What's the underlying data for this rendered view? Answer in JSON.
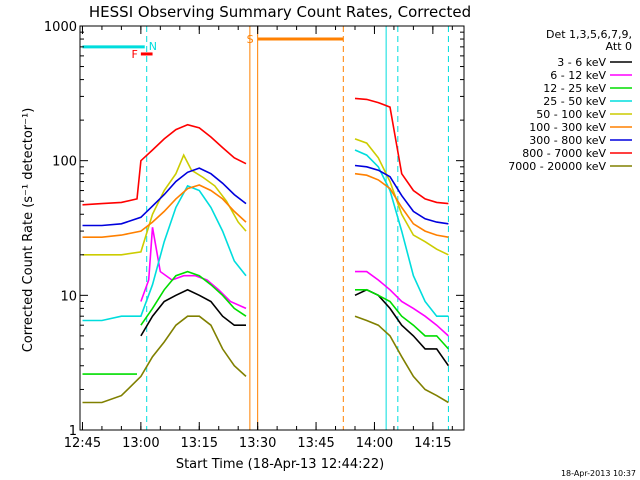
{
  "chart_data": {
    "type": "line",
    "title": "HESSI Observing Summary Count Rates, Corrected",
    "xlabel": "Start Time (18-Apr-13 12:44:22)",
    "ylabel": "Corrected Count Rate (s⁻¹ detector⁻¹)",
    "yscale": "log",
    "ylim": [
      1,
      1000
    ],
    "xlim": [
      "12:44:22",
      "14:23:00"
    ],
    "x_ticks": [
      "12:45",
      "13:00",
      "13:15",
      "13:30",
      "13:45",
      "14:00",
      "14:15"
    ],
    "y_ticks": [
      "1",
      "10",
      "100",
      "1000"
    ],
    "legend_title": [
      "Det 1,3,5,6,7,9,",
      "Att 0"
    ],
    "legend_position": "right",
    "timestamp": "18-Apr-2013 10:37",
    "annotations": [
      {
        "label": "F",
        "color": "#ff0000",
        "from": "13:00",
        "to": "13:03",
        "level": 620
      },
      {
        "label": "N",
        "color": "#00dddd",
        "from": "12:45",
        "to": "13:01",
        "level": 700
      },
      {
        "label": "S",
        "color": "#ff8000",
        "from": "13:30",
        "to": "13:52",
        "level": 800
      }
    ],
    "vlines": [
      {
        "time": "13:01:30",
        "color": "#00dddd",
        "style": "dashed"
      },
      {
        "time": "13:28",
        "color": "#ff8000",
        "style": "solid"
      },
      {
        "time": "13:30",
        "color": "#ff8000",
        "style": "solid"
      },
      {
        "time": "13:52",
        "color": "#ff8000",
        "style": "dashed"
      },
      {
        "time": "14:03",
        "color": "#00dddd",
        "style": "solid"
      },
      {
        "time": "14:06",
        "color": "#00dddd",
        "style": "dashed"
      },
      {
        "time": "14:19",
        "color": "#00dddd",
        "style": "dashed"
      }
    ],
    "series": [
      {
        "name": "3 - 6 keV",
        "color": "#000000",
        "x": [
          "13:00",
          "13:03",
          "13:06",
          "13:09",
          "13:12",
          "13:15",
          "13:18",
          "13:21",
          "13:24",
          "13:27",
          "13:55",
          "13:58",
          "14:01",
          "14:04",
          "14:07",
          "14:10",
          "14:13",
          "14:16",
          "14:19"
        ],
        "y": [
          5,
          7,
          9,
          10,
          11,
          10,
          9,
          7,
          6,
          6,
          10,
          11,
          10,
          8,
          6,
          5,
          4,
          4,
          3
        ]
      },
      {
        "name": "6 - 12 keV",
        "color": "#ff00ff",
        "x": [
          "13:00",
          "13:02",
          "13:03",
          "13:05",
          "13:08",
          "13:11",
          "13:14",
          "13:17",
          "13:20",
          "13:23",
          "13:27",
          "13:55",
          "13:58",
          "14:01",
          "14:04",
          "14:07",
          "14:10",
          "14:13",
          "14:16",
          "14:19"
        ],
        "y": [
          9,
          13,
          32,
          15,
          13,
          14,
          14,
          13,
          11,
          9,
          8,
          15,
          15,
          13,
          11,
          9,
          8,
          7,
          6,
          5
        ]
      },
      {
        "name": "12 - 25 keV",
        "color": "#00dd00",
        "x": [
          "13:00",
          "13:03",
          "13:06",
          "13:09",
          "13:12",
          "13:15",
          "13:18",
          "13:21",
          "13:24",
          "13:27",
          "13:55",
          "13:58",
          "14:01",
          "14:04",
          "14:07",
          "14:10",
          "14:13",
          "14:16",
          "14:19"
        ],
        "y": [
          6,
          8,
          11,
          14,
          15,
          14,
          12,
          10,
          8,
          7,
          11,
          11,
          10,
          9,
          7,
          6,
          5,
          5,
          4
        ]
      },
      {
        "name": "25 - 50 keV",
        "color": "#00dddd",
        "x": [
          "12:45",
          "12:50",
          "12:55",
          "13:00",
          "13:03",
          "13:06",
          "13:09",
          "13:12",
          "13:15",
          "13:18",
          "13:21",
          "13:24",
          "13:27",
          "13:55",
          "13:58",
          "14:01",
          "14:04",
          "14:07",
          "14:10",
          "14:13",
          "14:16",
          "14:19"
        ],
        "y": [
          6.5,
          6.5,
          7,
          7,
          12,
          25,
          45,
          65,
          60,
          45,
          30,
          18,
          14,
          120,
          110,
          90,
          60,
          30,
          14,
          9,
          7,
          7
        ]
      },
      {
        "name": "50 - 100 keV",
        "color": "#cccc00",
        "x": [
          "12:45",
          "12:50",
          "12:55",
          "13:00",
          "13:03",
          "13:06",
          "13:09",
          "13:11",
          "13:13",
          "13:16",
          "13:19",
          "13:22",
          "13:25",
          "13:27",
          "13:55",
          "13:58",
          "14:01",
          "14:04",
          "14:07",
          "14:10",
          "14:13",
          "14:16",
          "14:19"
        ],
        "y": [
          20,
          20,
          20,
          21,
          40,
          60,
          80,
          110,
          85,
          75,
          65,
          50,
          35,
          30,
          145,
          135,
          105,
          70,
          40,
          28,
          25,
          22,
          20
        ]
      },
      {
        "name": "100 - 300 keV",
        "color": "#ff8000",
        "x": [
          "12:45",
          "12:50",
          "12:55",
          "13:00",
          "13:03",
          "13:06",
          "13:09",
          "13:12",
          "13:15",
          "13:18",
          "13:21",
          "13:24",
          "13:27",
          "13:55",
          "13:58",
          "14:01",
          "14:04",
          "14:07",
          "14:10",
          "14:13",
          "14:16",
          "14:19"
        ],
        "y": [
          27,
          27,
          28,
          30,
          35,
          42,
          52,
          62,
          66,
          60,
          52,
          42,
          35,
          80,
          78,
          72,
          62,
          45,
          34,
          30,
          28,
          27
        ]
      },
      {
        "name": "300 - 800 keV",
        "color": "#0000dd",
        "x": [
          "12:45",
          "12:50",
          "12:55",
          "13:00",
          "13:03",
          "13:06",
          "13:09",
          "13:12",
          "13:15",
          "13:18",
          "13:21",
          "13:24",
          "13:27",
          "13:55",
          "13:58",
          "14:01",
          "14:04",
          "14:07",
          "14:10",
          "14:13",
          "14:16",
          "14:19"
        ],
        "y": [
          33,
          33,
          34,
          38,
          46,
          56,
          70,
          82,
          88,
          80,
          68,
          56,
          48,
          92,
          90,
          85,
          76,
          55,
          42,
          37,
          35,
          34
        ]
      },
      {
        "name": "800 - 7000 keV",
        "color": "#ff0000",
        "x": [
          "12:45",
          "12:50",
          "12:55",
          "12:59",
          "13:00",
          "13:03",
          "13:06",
          "13:09",
          "13:12",
          "13:15",
          "13:18",
          "13:21",
          "13:24",
          "13:27",
          "13:55",
          "13:58",
          "14:01",
          "14:04",
          "14:07",
          "14:10",
          "14:13",
          "14:16",
          "14:19"
        ],
        "y": [
          47,
          48,
          49,
          52,
          100,
          120,
          145,
          170,
          185,
          175,
          150,
          125,
          105,
          95,
          290,
          285,
          270,
          250,
          80,
          60,
          52,
          49,
          48
        ]
      },
      {
        "name": "7000 - 20000 keV",
        "color": "#808000",
        "x": [
          "12:45",
          "12:50",
          "12:55",
          "13:00",
          "13:03",
          "13:06",
          "13:09",
          "13:12",
          "13:15",
          "13:18",
          "13:21",
          "13:24",
          "13:27",
          "13:55",
          "13:58",
          "14:01",
          "14:04",
          "14:07",
          "14:10",
          "14:13",
          "14:16",
          "14:19"
        ],
        "y": [
          1.6,
          1.6,
          1.8,
          2.5,
          3.5,
          4.5,
          6,
          7,
          7,
          6,
          4,
          3,
          2.5,
          7,
          6.5,
          6,
          5,
          3.5,
          2.5,
          2,
          1.8,
          1.6
        ]
      },
      {
        "name": "12 - 25 keV",
        "color": "#00dd00",
        "legend": false,
        "x": [
          "12:45",
          "12:55",
          "12:59"
        ],
        "y": [
          2.6,
          2.6,
          2.6
        ]
      }
    ]
  }
}
